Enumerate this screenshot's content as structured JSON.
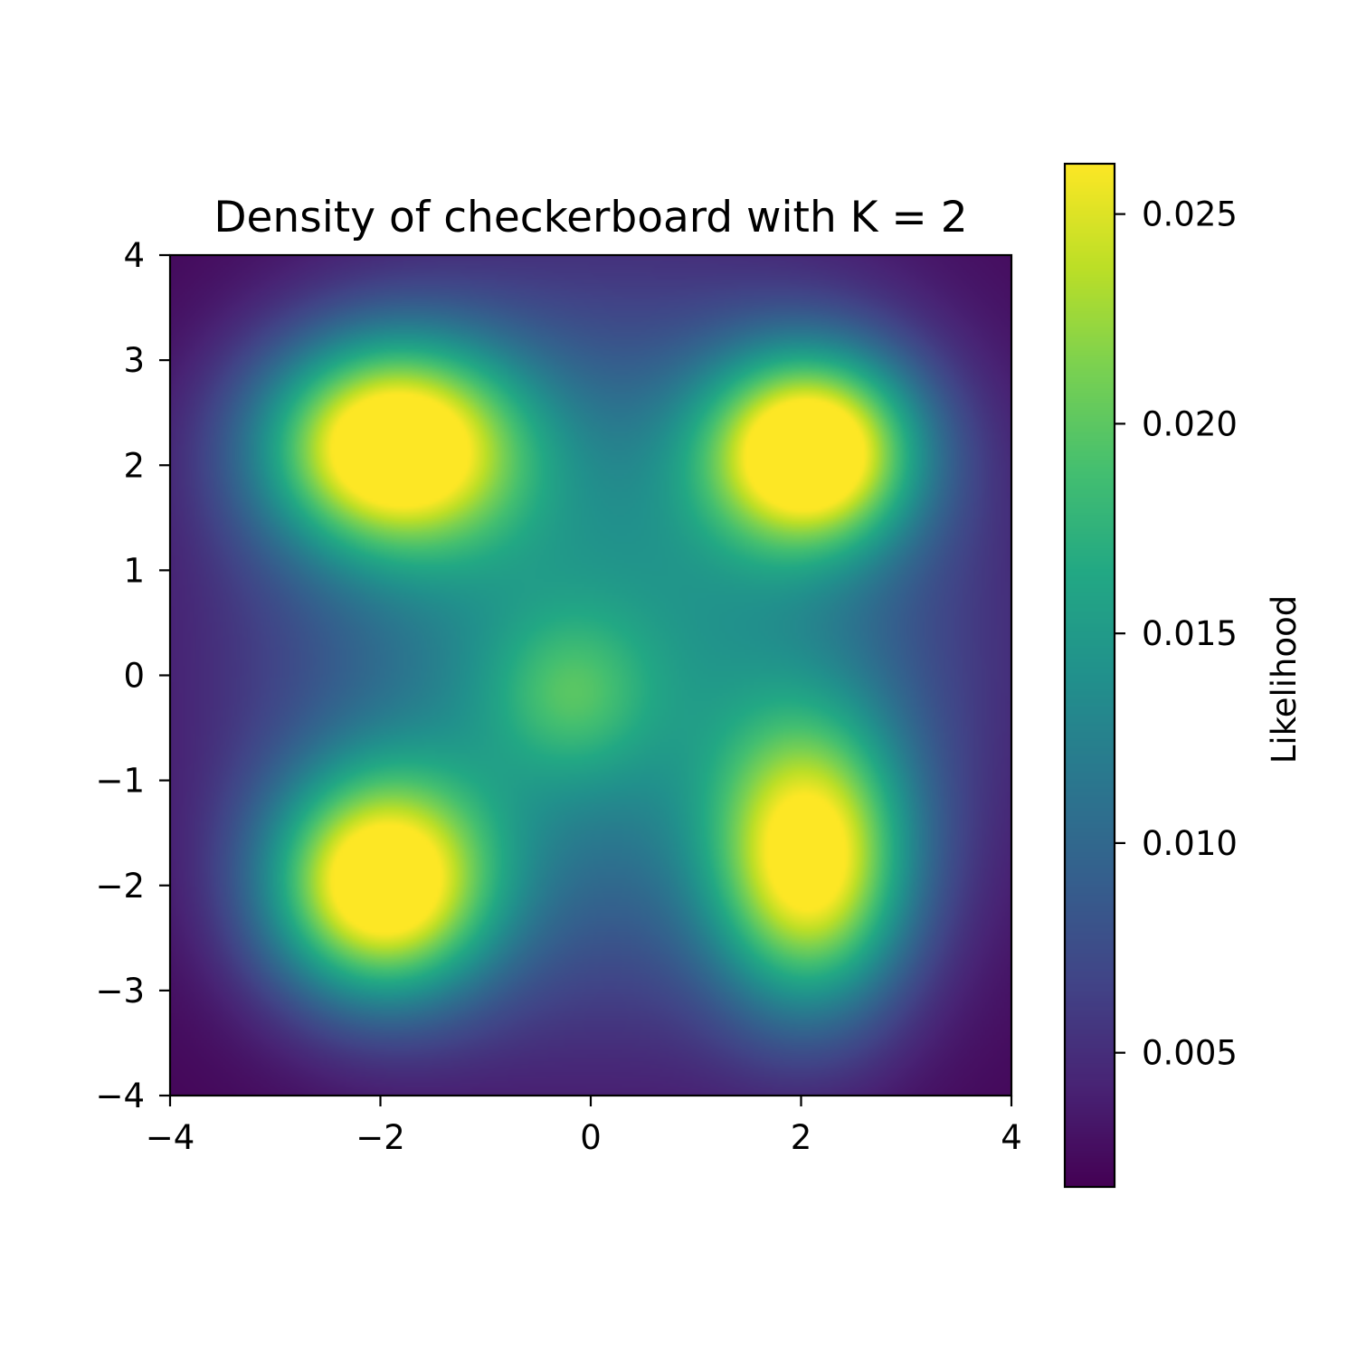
{
  "chart_data": {
    "type": "heatmap",
    "title": "Density of checkerboard with K = 2",
    "xlim": [
      -4,
      4
    ],
    "ylim": [
      -4,
      4
    ],
    "x_ticks": [
      -4,
      -2,
      0,
      2,
      4
    ],
    "x_tick_labels": [
      "−4",
      "−2",
      "0",
      "2",
      "4"
    ],
    "y_ticks": [
      -4,
      -3,
      -2,
      -1,
      0,
      1,
      2,
      3,
      4
    ],
    "y_tick_labels": [
      "−4",
      "−3",
      "−2",
      "−1",
      "0",
      "1",
      "2",
      "3",
      "4"
    ],
    "colormap": "viridis",
    "colorbar": {
      "label": "Likelihood",
      "range": [
        0.0018,
        0.0262
      ],
      "ticks": [
        0.005,
        0.01,
        0.015,
        0.02,
        0.025
      ],
      "tick_labels": [
        "0.005",
        "0.010",
        "0.015",
        "0.020",
        "0.025"
      ]
    },
    "density_model": {
      "background": 0.0018,
      "components": [
        {
          "center": [
            -1.9,
            2.2
          ],
          "sigma": [
            0.85,
            0.7
          ],
          "peak": 0.0246
        },
        {
          "center": [
            2.1,
            2.15
          ],
          "sigma": [
            0.7,
            0.65
          ],
          "peak": 0.0246
        },
        {
          "center": [
            -2.0,
            -2.0
          ],
          "sigma": [
            0.75,
            0.75
          ],
          "peak": 0.0246
        },
        {
          "center": [
            2.1,
            -1.8
          ],
          "sigma": [
            0.65,
            0.95
          ],
          "peak": 0.0216
        },
        {
          "center": [
            -0.2,
            -0.2
          ],
          "sigma": [
            0.55,
            0.55
          ],
          "peak": 0.0058
        },
        {
          "center": [
            0.2,
            0.3
          ],
          "sigma": [
            2.3,
            2.3
          ],
          "peak": 0.0126
        }
      ]
    }
  }
}
